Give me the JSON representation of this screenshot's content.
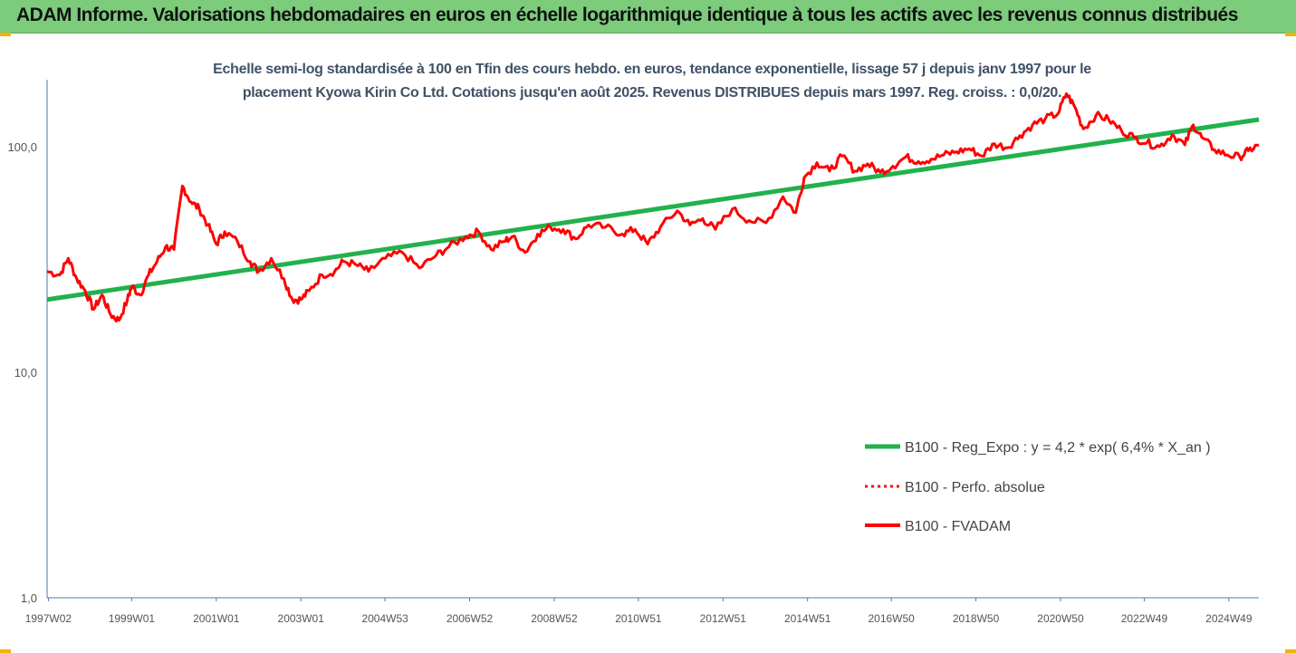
{
  "banner": {
    "title": "ADAM Informe. Valorisations hebdomadaires en euros en échelle logarithmique identique à tous les actifs avec les revenus connus distribués"
  },
  "chart_data": {
    "type": "line",
    "title_lines": [
      "Echelle semi-log standardisée à 100 en Tfin des cours hebdo. en euros, tendance exponentielle, lissage 57 j depuis janv 1997 pour le",
      "placement Kyowa Kirin Co Ltd. Cotations jusqu'en août 2025. Revenus DISTRIBUES depuis mars 1997. Reg. croiss. : 0,0/20."
    ],
    "y_scale": "log",
    "ylim": [
      1,
      200
    ],
    "y_ticks": [
      {
        "value": 1,
        "label": "1,0"
      },
      {
        "value": 10,
        "label": "10,0"
      },
      {
        "value": 100,
        "label": "100,0"
      }
    ],
    "x_range": [
      1997.0,
      2025.65
    ],
    "x_ticks": [
      {
        "label": "1997W02",
        "year": 1997.03
      },
      {
        "label": "1999W01",
        "year": 1999.0
      },
      {
        "label": "2001W01",
        "year": 2001.0
      },
      {
        "label": "2003W01",
        "year": 2003.0
      },
      {
        "label": "2004W53",
        "year": 2004.99
      },
      {
        "label": "2006W52",
        "year": 2006.99
      },
      {
        "label": "2008W52",
        "year": 2008.99
      },
      {
        "label": "2010W51",
        "year": 2010.98
      },
      {
        "label": "2012W51",
        "year": 2012.98
      },
      {
        "label": "2014W51",
        "year": 2014.98
      },
      {
        "label": "2016W50",
        "year": 2016.96
      },
      {
        "label": "2018W50",
        "year": 2018.96
      },
      {
        "label": "2020W50",
        "year": 2020.96
      },
      {
        "label": "2022W49",
        "year": 2022.94
      },
      {
        "label": "2024W49",
        "year": 2024.94
      }
    ],
    "grid": false,
    "legend_position": "bottom-right",
    "series": [
      {
        "name": "B100 - Reg_Expo : y = 4,2 * exp( 6,4% *  X_an )",
        "color": "#22b14c",
        "style": "solid",
        "x": [
          1997.0,
          2025.65
        ],
        "values": [
          21,
          132
        ]
      },
      {
        "name": "B100 - Perfo. absolue",
        "color": "#ff0000",
        "style": "dotted",
        "x": [],
        "values": []
      },
      {
        "name": "B100 - FVADAM",
        "color": "#ff0000",
        "style": "solid",
        "x": [
          1997.0,
          1997.3,
          1997.5,
          1997.7,
          1997.9,
          1998.1,
          1998.3,
          1998.5,
          1998.7,
          1998.9,
          1999.0,
          1999.2,
          1999.4,
          1999.6,
          1999.8,
          2000.0,
          2000.2,
          2000.4,
          2000.6,
          2000.8,
          2001.0,
          2001.2,
          2001.5,
          2001.8,
          2002.0,
          2002.3,
          2002.6,
          2002.8,
          2003.0,
          2003.2,
          2003.5,
          2003.8,
          2004.0,
          2004.3,
          2004.6,
          2005.0,
          2005.4,
          2005.8,
          2006.2,
          2006.5,
          2006.9,
          2007.2,
          2007.5,
          2007.8,
          2008.0,
          2008.3,
          2008.6,
          2008.9,
          2009.2,
          2009.5,
          2009.8,
          2010.2,
          2010.6,
          2010.9,
          2011.2,
          2011.5,
          2011.9,
          2012.2,
          2012.5,
          2012.8,
          2013.2,
          2013.6,
          2014.0,
          2014.4,
          2014.7,
          2014.9,
          2015.2,
          2015.5,
          2015.8,
          2016.1,
          2016.4,
          2016.7,
          2017.0,
          2017.3,
          2017.6,
          2017.9,
          2018.2,
          2018.5,
          2018.8,
          2019.1,
          2019.4,
          2019.7,
          2020.0,
          2020.3,
          2020.6,
          2020.9,
          2021.1,
          2021.3,
          2021.5,
          2021.8,
          2022.1,
          2022.4,
          2022.7,
          2023.0,
          2023.3,
          2023.6,
          2023.9,
          2024.1,
          2024.3,
          2024.6,
          2024.9,
          2025.2,
          2025.4,
          2025.65
        ],
        "values": [
          28,
          27,
          32,
          26,
          23,
          19,
          22,
          18,
          17,
          21,
          24,
          22,
          27,
          31,
          36,
          35,
          67,
          57,
          53,
          45,
          37,
          42,
          38,
          31,
          28,
          32,
          26,
          21,
          21,
          23,
          27,
          28,
          31,
          30,
          28,
          32,
          34,
          29,
          33,
          36,
          40,
          42,
          35,
          38,
          40,
          34,
          41,
          44,
          43,
          39,
          45,
          44,
          41,
          43,
          37,
          44,
          52,
          45,
          48,
          43,
          53,
          47,
          46,
          60,
          51,
          73,
          85,
          78,
          91,
          78,
          84,
          77,
          82,
          90,
          86,
          88,
          92,
          95,
          98,
          91,
          103,
          99,
          112,
          125,
          133,
          140,
          172,
          150,
          120,
          138,
          132,
          118,
          110,
          104,
          100,
          113,
          102,
          125,
          110,
          97,
          92,
          90,
          96,
          102
        ]
      }
    ]
  }
}
